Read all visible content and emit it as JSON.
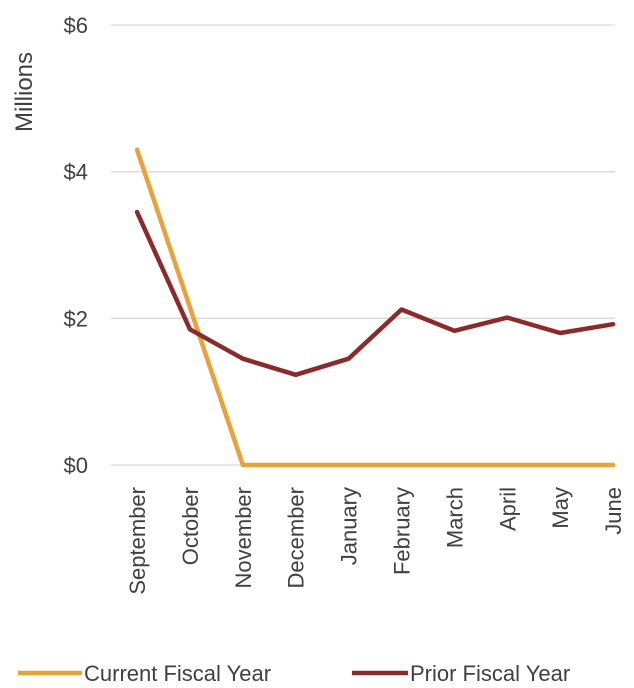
{
  "chart_data": {
    "type": "line",
    "title": "",
    "xlabel": "",
    "ylabel": "Millions",
    "categories": [
      "September",
      "October",
      "November",
      "December",
      "January",
      "February",
      "March",
      "April",
      "May",
      "June"
    ],
    "ylim": [
      0,
      6
    ],
    "yticks": [
      0,
      2,
      4,
      6
    ],
    "ytick_labels": [
      "$0",
      "$2",
      "$4",
      "$6"
    ],
    "grid": true,
    "legend_position": "bottom",
    "series": [
      {
        "name": "Current Fiscal Year",
        "color": "#E9A23B",
        "values": [
          4.3,
          null,
          0,
          0,
          0,
          0,
          0,
          0,
          0,
          0
        ]
      },
      {
        "name": "Prior Fiscal Year",
        "color": "#8B2A2A",
        "values": [
          3.45,
          1.85,
          1.45,
          1.23,
          1.45,
          2.12,
          1.83,
          2.01,
          1.8,
          1.92
        ]
      }
    ]
  }
}
